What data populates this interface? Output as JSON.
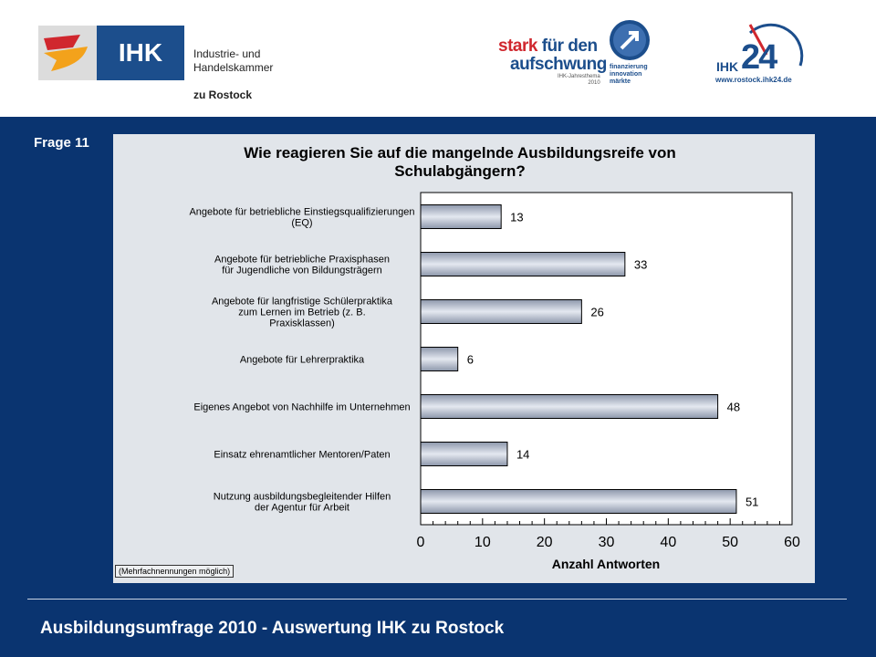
{
  "header": {
    "ihk_logo": {
      "abbr": "IHK",
      "name_line1": "Industrie- und Handelskammer",
      "name_line2": "zu Rostock"
    },
    "campaign_logo": {
      "line1_red": "stark",
      "line1_blue": " für den",
      "line2": "aufschwung",
      "small_line1": "IHK-Jahresthema",
      "small_line2": "2010",
      "word1": "finanzierung",
      "word2": "innovation",
      "word3": "märkte"
    },
    "ihk24_logo": {
      "prefix": "IHK",
      "number": "24",
      "url": "www.rostock.ihk24.de"
    }
  },
  "slide": {
    "question_label": "Frage 11",
    "footer_title": "Ausbildungsumfrage 2010 - Auswertung IHK zu Rostock",
    "footnote": "(Mehrfachnennungen möglich)"
  },
  "colors": {
    "background": "#0a3470",
    "panel": "#e1e5ea",
    "bar_light": "#e4e8f0",
    "bar_dark": "#8d97ab"
  },
  "chart_data": {
    "type": "bar",
    "orientation": "horizontal",
    "title_lines": [
      "Wie reagieren Sie auf die mangelnde Ausbildungsreife von",
      "Schulabgängern?"
    ],
    "xlabel": "Anzahl Antworten",
    "ylabel": "",
    "xlim": [
      0,
      60
    ],
    "xticks": [
      0,
      10,
      20,
      30,
      40,
      50,
      60
    ],
    "grid": false,
    "categories": [
      [
        "Angebote für betriebliche Einstiegsqualifizierungen",
        "(EQ)"
      ],
      [
        "Angebote für betriebliche Praxisphasen",
        "für Jugendliche von Bildungsträgern"
      ],
      [
        "Angebote für langfristige Schülerpraktika",
        "zum Lernen im Betrieb (z. B.",
        "Praxisklassen)"
      ],
      [
        "Angebote für Lehrerpraktika"
      ],
      [
        "Eigenes Angebot von Nachhilfe im Unternehmen"
      ],
      [
        "Einsatz ehrenamtlicher Mentoren/Paten"
      ],
      [
        "Nutzung ausbildungsbegleitender Hilfen",
        "der Agentur für Arbeit"
      ]
    ],
    "values": [
      13,
      33,
      26,
      6,
      48,
      14,
      51
    ]
  }
}
